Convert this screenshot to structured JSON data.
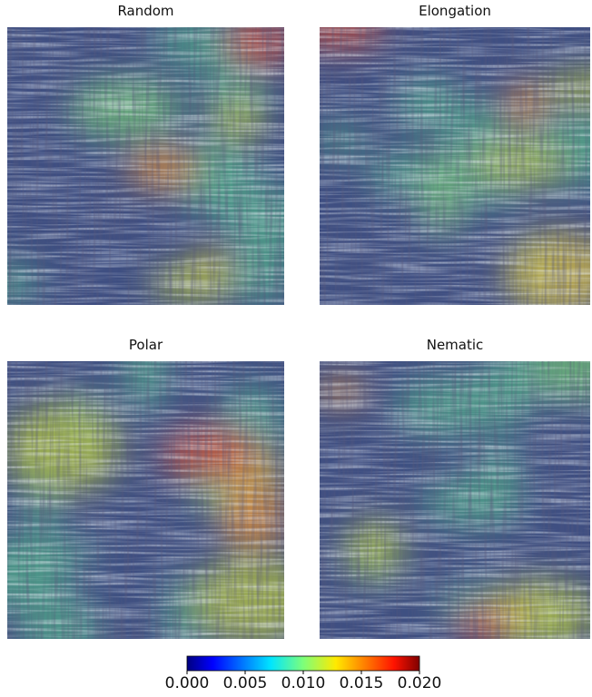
{
  "panels": [
    {
      "title": "Random"
    },
    {
      "title": "Elongation"
    },
    {
      "title": "Polar"
    },
    {
      "title": "Nematic"
    }
  ],
  "colorbar": {
    "lim": [
      0,
      0.02
    ],
    "colormap": "jet",
    "ticks": [
      {
        "value": 0,
        "label": "0.000"
      },
      {
        "value": 0.005,
        "label": "0.005"
      },
      {
        "value": 0.01,
        "label": "0.010"
      },
      {
        "value": 0.015,
        "label": "0.015"
      },
      {
        "value": 0.02,
        "label": "0.020"
      }
    ]
  }
}
